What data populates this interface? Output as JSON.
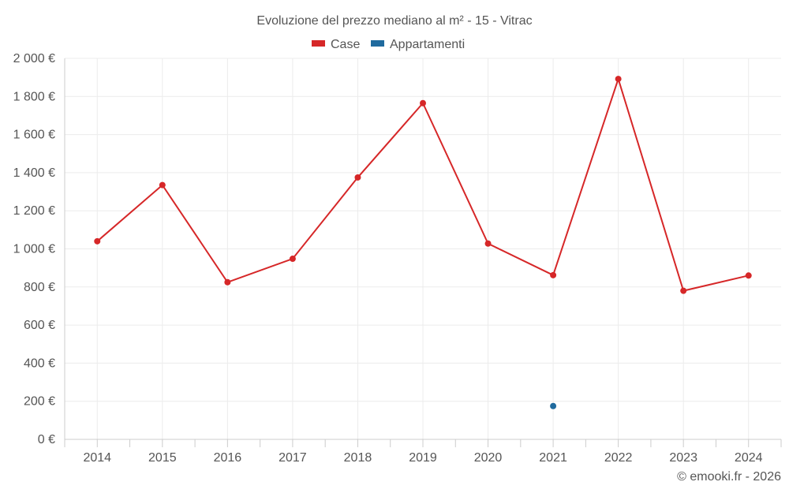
{
  "chart_data": {
    "type": "line",
    "title": "Evoluzione del prezzo mediano al m² - 15 - Vitrac",
    "categories": [
      "2014",
      "2015",
      "2016",
      "2017",
      "2018",
      "2019",
      "2020",
      "2021",
      "2022",
      "2023",
      "2024"
    ],
    "series": [
      {
        "name": "Case",
        "color": "#d62728",
        "values": [
          1040,
          1335,
          825,
          948,
          1375,
          1765,
          1028,
          862,
          1892,
          780,
          860
        ]
      },
      {
        "name": "Appartamenti",
        "color": "#1f6a9e",
        "values": [
          null,
          null,
          null,
          null,
          null,
          null,
          null,
          175,
          null,
          null,
          null
        ]
      }
    ],
    "ylim": [
      0,
      2000
    ],
    "yticks": [
      0,
      200,
      400,
      600,
      800,
      1000,
      1200,
      1400,
      1600,
      1800,
      2000
    ],
    "ytick_labels": [
      "0 €",
      "200 €",
      "400 €",
      "600 €",
      "800 €",
      "1 000 €",
      "1 200 €",
      "1 400 €",
      "1 600 €",
      "1 800 €",
      "2 000 €"
    ],
    "xlabel": "",
    "ylabel": "",
    "legend_position": "top-center",
    "grid": true
  },
  "credit": "© emooki.fr - 2026"
}
